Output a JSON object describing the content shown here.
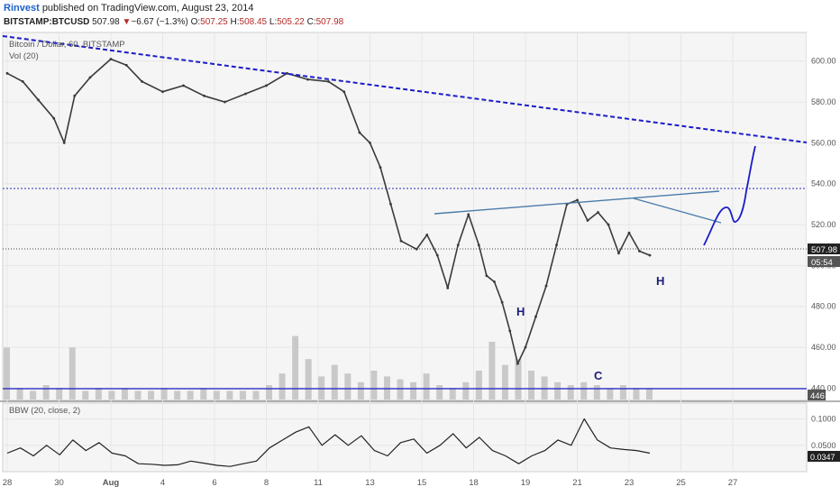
{
  "header": {
    "author": "Rinvest",
    "published_text": "published on TradingView.com, August 23, 2014",
    "symbol": "BITSTAMP:BTCUSD",
    "last": "507.98",
    "change_arrow": "▼",
    "change": "−6.67 (−1.3%)",
    "o_label": "O:",
    "o_value": "507.25",
    "h_label": "H:",
    "h_value": "508.45",
    "l_label": "L:",
    "l_value": "505.22",
    "c_label": "C:",
    "c_value": "507.98"
  },
  "chart_data": {
    "type": "line",
    "title": "Bitcoin / Dollar, 60, BITSTAMP",
    "vol_label": "Vol (20)",
    "bbw_label": "BBW (20, close, 2)",
    "price_ticks": [
      "600.00",
      "580.00",
      "560.00",
      "540.00",
      "520.00",
      "500.00",
      "480.00",
      "460.00",
      "440.00"
    ],
    "price_range": [
      434,
      614
    ],
    "last_price_label": "507.98",
    "countdown_label": "05:54",
    "volume_label": "446",
    "bbw_ticks": [
      "0.1000",
      "0.0500"
    ],
    "bbw_range": [
      0.0,
      0.13
    ],
    "bbw_last_label": "0.0347",
    "x_ticks": [
      "28",
      "30",
      "Aug",
      "4",
      "6",
      "8",
      "11",
      "13",
      "15",
      "18",
      "19",
      "21",
      "23",
      "25",
      "27"
    ],
    "x_tick_pos": [
      0,
      1,
      2,
      3,
      4,
      5,
      6,
      7,
      8,
      9,
      10,
      11,
      12,
      13,
      14
    ],
    "annotations": [
      "H",
      "C",
      "H"
    ],
    "series": [
      {
        "x": [
          0.0,
          0.3,
          0.6,
          0.9,
          1.1,
          1.3,
          1.6,
          2.0,
          2.3,
          2.6,
          3.0,
          3.4,
          3.8,
          4.2,
          4.6,
          5.0,
          5.4,
          5.8,
          6.2,
          6.5,
          6.8,
          7.0,
          7.2,
          7.4,
          7.6,
          7.9,
          8.1,
          8.3,
          8.5,
          8.7,
          8.9,
          9.1,
          9.25,
          9.4,
          9.55,
          9.7,
          9.85,
          10.0,
          10.2,
          10.4,
          10.6,
          10.8,
          11.0,
          11.2,
          11.4,
          11.6,
          11.8,
          12.0,
          12.2,
          12.4
        ],
        "y": [
          594,
          590,
          581,
          572,
          560,
          583,
          592,
          601,
          598,
          590,
          585,
          588,
          583,
          580,
          584,
          588,
          594,
          591,
          590,
          585,
          565,
          560,
          548,
          530,
          512,
          508,
          515,
          505,
          489,
          510,
          525,
          510,
          495,
          492,
          482,
          468,
          452,
          460,
          475,
          490,
          510,
          530,
          532,
          522,
          526,
          520,
          506,
          516,
          507,
          505
        ]
      }
    ],
    "volume": [
      18,
      4,
      3,
      5,
      4,
      18,
      3,
      4,
      3,
      4,
      3,
      3,
      4,
      3,
      3,
      4,
      3,
      3,
      3,
      3,
      5,
      9,
      22,
      14,
      8,
      12,
      9,
      6,
      10,
      8,
      7,
      6,
      9,
      5,
      4,
      6,
      10,
      20,
      12,
      14,
      10,
      8,
      6,
      5,
      6,
      5,
      4,
      5,
      4,
      4
    ],
    "bbw": [
      0.035,
      0.045,
      0.03,
      0.05,
      0.032,
      0.06,
      0.04,
      0.055,
      0.035,
      0.03,
      0.015,
      0.014,
      0.012,
      0.013,
      0.02,
      0.016,
      0.012,
      0.01,
      0.015,
      0.02,
      0.045,
      0.06,
      0.075,
      0.085,
      0.05,
      0.07,
      0.05,
      0.068,
      0.04,
      0.03,
      0.055,
      0.062,
      0.035,
      0.05,
      0.072,
      0.045,
      0.065,
      0.04,
      0.03,
      0.015,
      0.03,
      0.04,
      0.06,
      0.05,
      0.1,
      0.06,
      0.045,
      0.042,
      0.04,
      0.035
    ]
  }
}
